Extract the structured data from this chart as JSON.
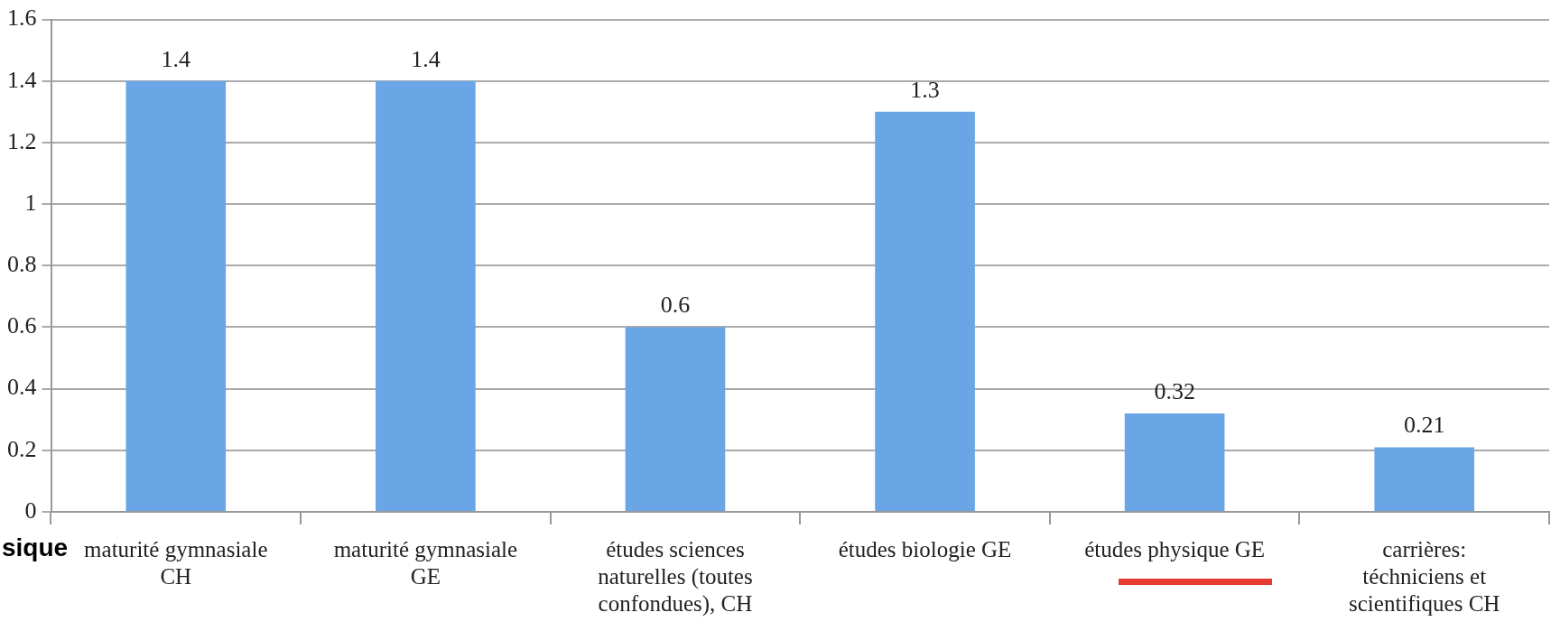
{
  "chart_data": {
    "type": "bar",
    "categories": [
      "maturité gymnasiale CH",
      "maturité gymnasiale GE",
      "études sciences naturelles (toutes confondues), CH",
      "études biologie GE",
      "études physique GE",
      "carrières: téchniciens et scientifiques CH"
    ],
    "values": [
      1.4,
      1.4,
      0.6,
      1.3,
      0.32,
      0.21
    ],
    "color": "#6aa6e6",
    "ylim": [
      0,
      1.6
    ],
    "yticks": [
      0,
      0.2,
      0.4,
      0.6,
      0.8,
      1,
      1.2,
      1.4,
      1.6
    ],
    "grid": "y",
    "legend": false,
    "data_labels": true,
    "annotations": [
      "sique"
    ]
  }
}
